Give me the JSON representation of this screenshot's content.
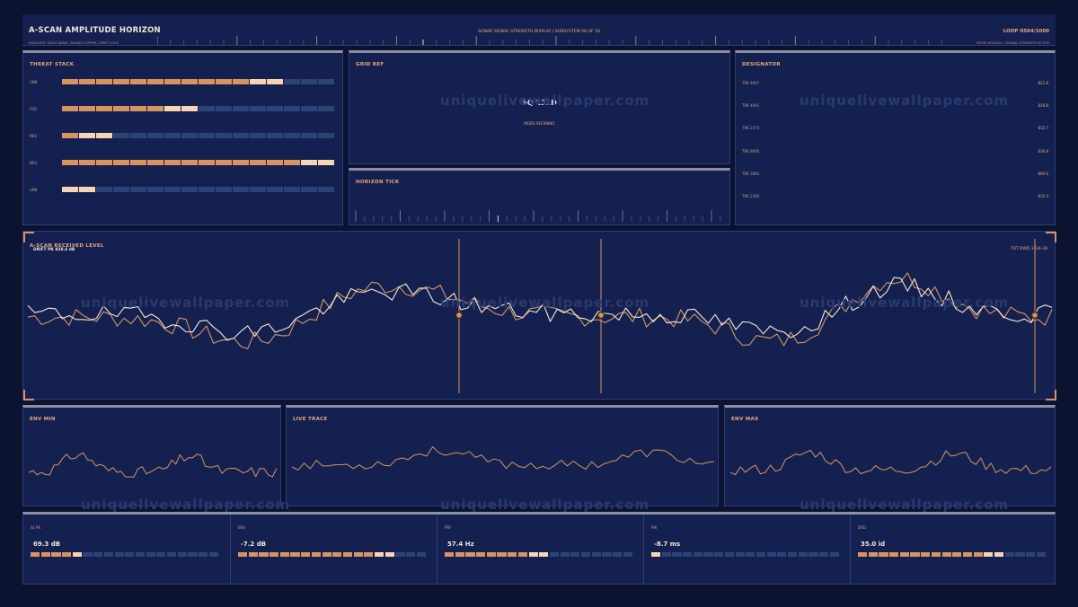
{
  "header": {
    "title": "A-SCAN AMPLITUDE HORIZON",
    "subtitle_left": "ENVELOPE TRACE BAND / BONDS COPPER / DRIFT LOCK",
    "center": "SONAR SIGNAL STRENGTH DISPLAY / SUBSYSTEM 08 OF 18",
    "loop": "LOOP 0504/1000",
    "subtitle_right": "MODE HOLDOLL / SIGNAL STRENGTH ACTIVE"
  },
  "threat_stack": {
    "title": "THREAT STACK",
    "rows": [
      {
        "label": "UNK",
        "on": 11,
        "hi": 2
      },
      {
        "label": "FRD",
        "on": 6,
        "hi": 2
      },
      {
        "label": "NEU",
        "on": 1,
        "hi": 2
      },
      {
        "label": "NEU",
        "on": 14,
        "hi": 2
      },
      {
        "label": "UNK",
        "on": 0,
        "hi": 2
      }
    ],
    "total_segments": 16
  },
  "grid_ref": {
    "title": "GRID REF",
    "value": "SQ 131D",
    "sub": "MGRS 91F09861"
  },
  "horizon_tick": {
    "title": "HORIZON TICK"
  },
  "designator": {
    "title": "DESIGNATOR",
    "rows": [
      {
        "label": "TRK 4907",
        "value": "822.8"
      },
      {
        "label": "TRK 4941",
        "value": "828.8"
      },
      {
        "label": "TRK 2373",
        "value": "832.7"
      },
      {
        "label": "TRK 8095",
        "value": "839.8"
      },
      {
        "label": "TRK 3081",
        "value": "889.6"
      },
      {
        "label": "TRK 2360",
        "value": "835.4"
      }
    ]
  },
  "ascan": {
    "title": "A-SCAN RECEIVED LEVEL",
    "drift": "DRIFT PK 838.4 dB",
    "right": "TOT DWD 3334-39"
  },
  "env_min": {
    "title": "ENV MIN"
  },
  "live_trace": {
    "title": "LIVE TRACE"
  },
  "env_max": {
    "title": "ENV MAX"
  },
  "kpis": [
    {
      "label": "SL PK",
      "value": "69.3 dB",
      "on": 4,
      "hi": 1
    },
    {
      "label": "ENV",
      "value": "-7.2 dB",
      "on": 13,
      "hi": 2
    },
    {
      "label": "PRF",
      "value": "57.4 Hz",
      "on": 8,
      "hi": 2
    },
    {
      "label": "PW",
      "value": "-8.7 ms",
      "on": 0,
      "hi": 1
    },
    {
      "label": "DRD",
      "value": "35.0 id",
      "on": 12,
      "hi": 2
    }
  ],
  "watermark": "uniquelivewallpaper.com",
  "colors": {
    "bg": "#0b1330",
    "panel": "#142150",
    "accent": "#d9935f",
    "highlight": "#f7d4b4",
    "off": "#2b4377"
  }
}
